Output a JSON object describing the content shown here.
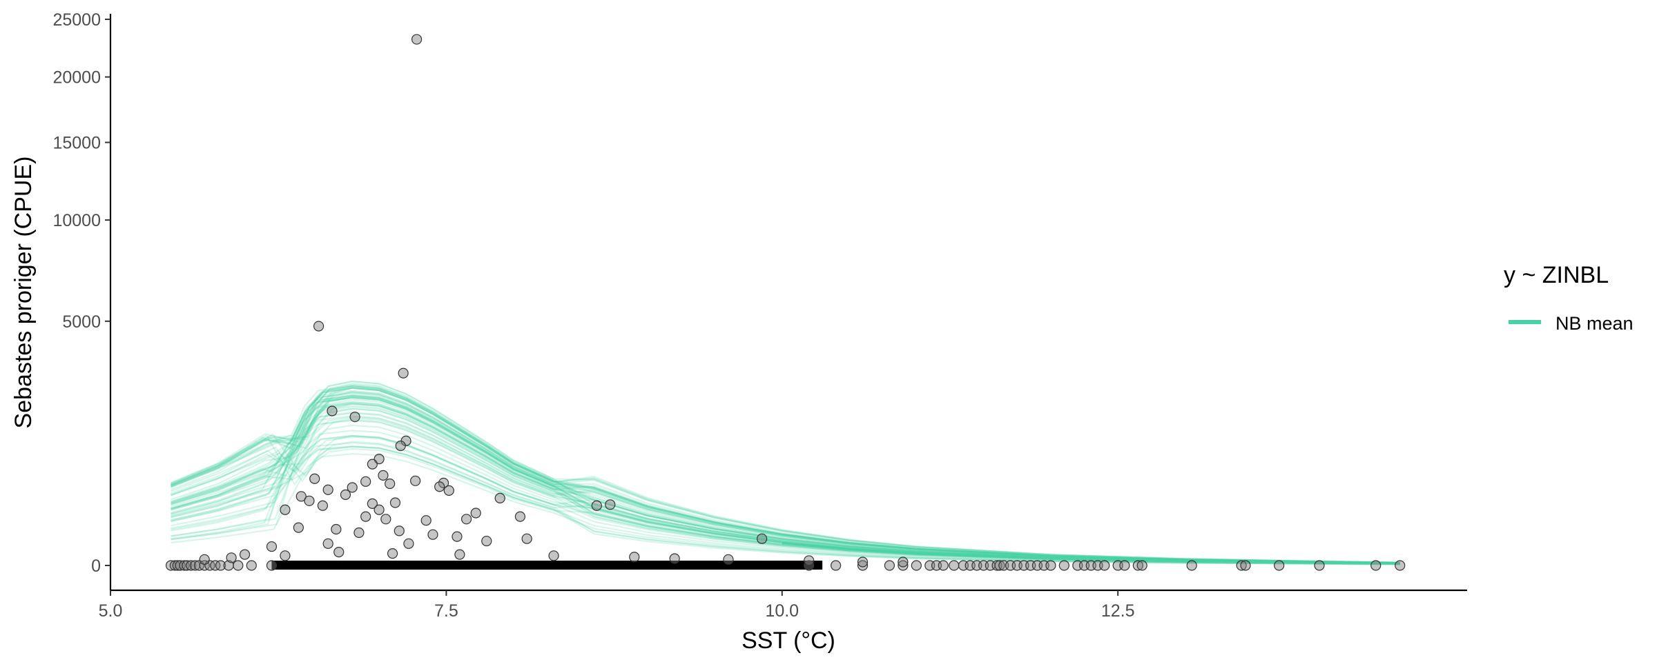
{
  "chart_data": {
    "type": "line",
    "title": "",
    "xlabel": "SST (°C)",
    "ylabel": "Sebastes proriger (CPUE)",
    "y_scale": "sqrt",
    "xlim": [
      5.0,
      15.1
    ],
    "ylim": [
      0,
      25000
    ],
    "x_ticks": [
      "5.0",
      "7.5",
      "10.0",
      "12.5"
    ],
    "y_ticks": [
      "0",
      "5000",
      "10000",
      "15000",
      "20000",
      "25000"
    ],
    "x_tick_values": [
      5.0,
      7.5,
      10.0,
      12.5
    ],
    "y_tick_values": [
      0,
      5000,
      10000,
      15000,
      20000,
      25000
    ],
    "grid": false,
    "legend": {
      "title": "y ~ ZINBL",
      "position": "right",
      "entries": [
        {
          "label": "NB mean",
          "color": "#48D1A6"
        }
      ]
    },
    "colors": {
      "fit_lines": "#48D1A6",
      "points": "#7f7f7f",
      "point_edge": "#333333",
      "axis": "#000000"
    },
    "fit_curves": {
      "description_count": 60,
      "x": [
        5.45,
        5.8,
        6.2,
        6.4,
        6.5,
        6.6,
        6.8,
        7.0,
        7.2,
        7.4,
        7.6,
        7.8,
        8.0,
        8.3,
        8.6,
        9.0,
        9.5,
        10.0,
        10.5,
        11.0,
        12.0,
        13.0,
        14.0,
        14.6
      ],
      "median_y": [
        170,
        260,
        430,
        1000,
        1500,
        1800,
        1900,
        1850,
        1650,
        1380,
        1100,
        850,
        620,
        420,
        260,
        150,
        80,
        42,
        22,
        12,
        4,
        1.5,
        0.6,
        0.3
      ]
    },
    "series": [
      {
        "name": "observations",
        "type": "scatter",
        "points": [
          [
            7.28,
            23200
          ],
          [
            6.55,
            4800
          ],
          [
            7.18,
            3100
          ],
          [
            6.65,
            2000
          ],
          [
            6.82,
            1850
          ],
          [
            7.2,
            1300
          ],
          [
            7.16,
            1200
          ],
          [
            7.0,
            950
          ],
          [
            6.95,
            860
          ],
          [
            7.03,
            680
          ],
          [
            6.52,
            630
          ],
          [
            6.9,
            590
          ],
          [
            7.08,
            560
          ],
          [
            7.27,
            600
          ],
          [
            7.48,
            570
          ],
          [
            7.45,
            520
          ],
          [
            6.8,
            510
          ],
          [
            6.62,
            480
          ],
          [
            7.52,
            470
          ],
          [
            6.75,
            420
          ],
          [
            6.42,
            400
          ],
          [
            6.48,
            350
          ],
          [
            6.58,
            300
          ],
          [
            6.95,
            320
          ],
          [
            7.12,
            330
          ],
          [
            7.0,
            260
          ],
          [
            6.3,
            260
          ],
          [
            6.9,
            200
          ],
          [
            7.05,
            180
          ],
          [
            7.35,
            170
          ],
          [
            7.65,
            180
          ],
          [
            7.72,
            230
          ],
          [
            7.9,
            380
          ],
          [
            8.05,
            200
          ],
          [
            8.62,
            300
          ],
          [
            8.72,
            310
          ],
          [
            6.4,
            120
          ],
          [
            6.68,
            110
          ],
          [
            6.85,
            90
          ],
          [
            7.15,
            100
          ],
          [
            7.4,
            80
          ],
          [
            7.58,
            70
          ],
          [
            7.8,
            50
          ],
          [
            8.1,
            60
          ],
          [
            6.62,
            40
          ],
          [
            7.22,
            40
          ],
          [
            9.85,
            60
          ],
          [
            6.2,
            30
          ],
          [
            6.0,
            10
          ],
          [
            5.9,
            5
          ],
          [
            5.7,
            3
          ],
          [
            6.3,
            8
          ],
          [
            6.7,
            15
          ],
          [
            7.1,
            12
          ],
          [
            7.6,
            10
          ],
          [
            8.3,
            8
          ],
          [
            8.9,
            6
          ],
          [
            9.2,
            4
          ],
          [
            9.6,
            3
          ],
          [
            10.2,
            2
          ],
          [
            10.6,
            1
          ],
          [
            10.9,
            1
          ]
        ]
      }
    ],
    "zero_points_x": [
      5.45,
      5.48,
      5.5,
      5.52,
      5.55,
      5.57,
      5.6,
      5.63,
      5.66,
      5.7,
      5.74,
      5.78,
      5.82,
      5.88,
      5.95,
      6.05,
      6.2,
      10.2,
      10.4,
      10.6,
      10.8,
      10.9,
      11.0,
      11.1,
      11.15,
      11.2,
      11.28,
      11.35,
      11.4,
      11.45,
      11.5,
      11.55,
      11.6,
      11.62,
      11.65,
      11.7,
      11.75,
      11.8,
      11.85,
      11.9,
      11.95,
      12.0,
      12.1,
      12.2,
      12.25,
      12.3,
      12.35,
      12.4,
      12.5,
      12.55,
      12.65,
      12.68,
      13.05,
      13.42,
      13.45,
      13.7,
      14.0,
      14.42,
      14.6
    ]
  }
}
